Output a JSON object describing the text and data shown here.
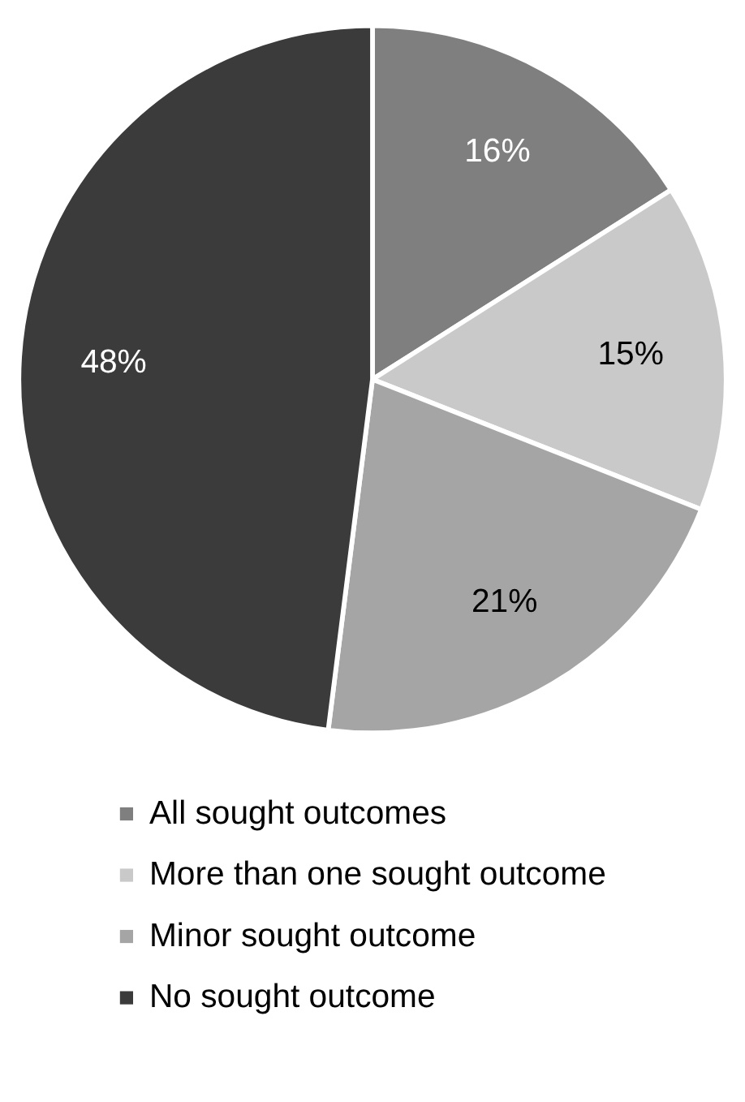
{
  "chart_data": {
    "type": "pie",
    "categories": [
      "All sought outcomes",
      "More than one sought outcome",
      "Minor sought outcome",
      "No sought outcome"
    ],
    "values": [
      16,
      15,
      21,
      48
    ],
    "value_labels": [
      "16%",
      "15%",
      "21%",
      "48%"
    ],
    "colors": [
      "#7f7f7f",
      "#c9c9c9",
      "#a5a5a5",
      "#3b3b3b"
    ],
    "legend": "bottom"
  }
}
